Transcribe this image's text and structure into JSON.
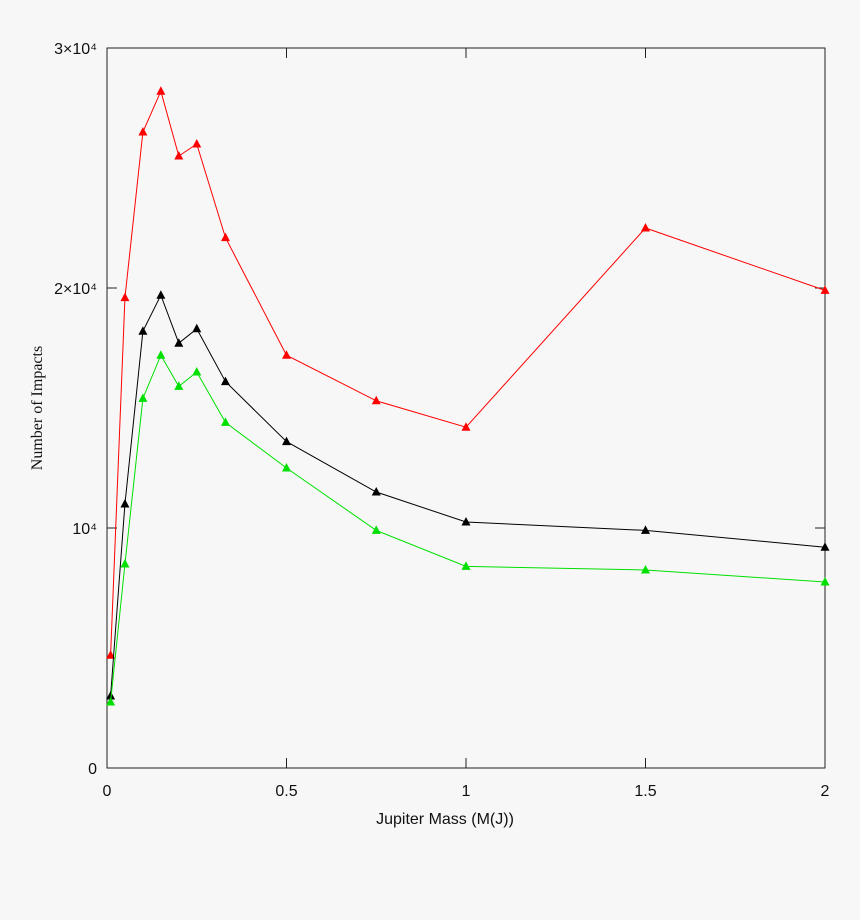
{
  "chart_data": {
    "type": "line",
    "xlabel": "Jupiter Mass (M(J))",
    "ylabel": "Number of Impacts",
    "x": [
      0.01,
      0.05,
      0.1,
      0.15,
      0.2,
      0.25,
      0.33,
      0.5,
      0.75,
      1,
      1.5,
      2
    ],
    "series": [
      {
        "color": "#ff0000",
        "values": [
          4700,
          19600,
          26500,
          28200,
          25500,
          26000,
          22100,
          17200,
          15300,
          14200,
          22500,
          19900
        ]
      },
      {
        "color": "#000000",
        "values": [
          3000,
          11000,
          18200,
          19700,
          17700,
          18300,
          16100,
          13600,
          11500,
          10250,
          9900,
          9200
        ]
      },
      {
        "color": "#00e000",
        "values": [
          2750,
          8500,
          15400,
          17200,
          15900,
          16500,
          14400,
          12500,
          9900,
          8400,
          8250,
          7750
        ]
      }
    ],
    "xlim": [
      0,
      2
    ],
    "xticks": [
      0,
      0.5,
      1,
      1.5,
      2
    ],
    "ylim": [
      0,
      30000
    ],
    "yticks": [
      0,
      {
        "value": 10000,
        "label": "10⁴"
      },
      {
        "value": 20000,
        "label": "2×10⁴"
      },
      {
        "value": 30000,
        "label": "3×10⁴"
      }
    ],
    "marker": "triangle"
  }
}
